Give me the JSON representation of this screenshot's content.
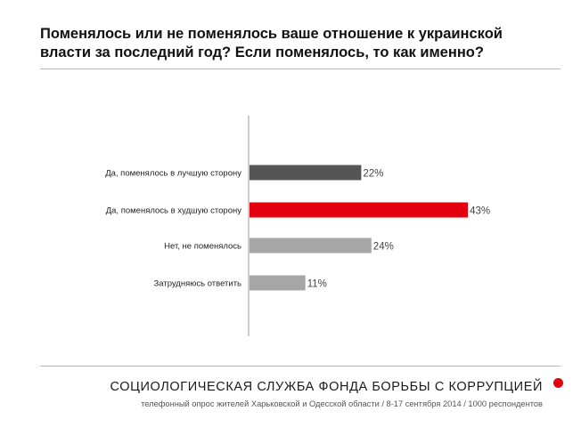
{
  "colors": {
    "accent": "#e3000f",
    "bar_dark": "#555555",
    "bar_light": "#a6a6a6"
  },
  "chart_data": {
    "type": "bar",
    "orientation": "horizontal",
    "title": "Поменялось или не поменялось ваше отношение к украинской власти за последний год? Если поменялось, то как именно?",
    "categories": [
      "Да, поменялось в лучшую сторону",
      "Да, поменялось в худшую сторону",
      "Нет, не поменялось",
      "Затрудняюсь ответить"
    ],
    "values": [
      22,
      43,
      24,
      11
    ],
    "value_labels": [
      "22%",
      "43%",
      "24%",
      "11%"
    ],
    "bar_colors": [
      "#555555",
      "#e3000f",
      "#a6a6a6",
      "#a6a6a6"
    ],
    "xlim": [
      0,
      45
    ],
    "grid": false,
    "legend": "none"
  },
  "footer": {
    "org": "СОЦИОЛОГИЧЕСКАЯ СЛУЖБА ФОНДА БОРЬБЫ С КОРРУПЦИЕЙ",
    "note": "телефонный опрос жителей Харьковской и Одесской области / 8-17 сентября 2014 / 1000 респондентов"
  }
}
